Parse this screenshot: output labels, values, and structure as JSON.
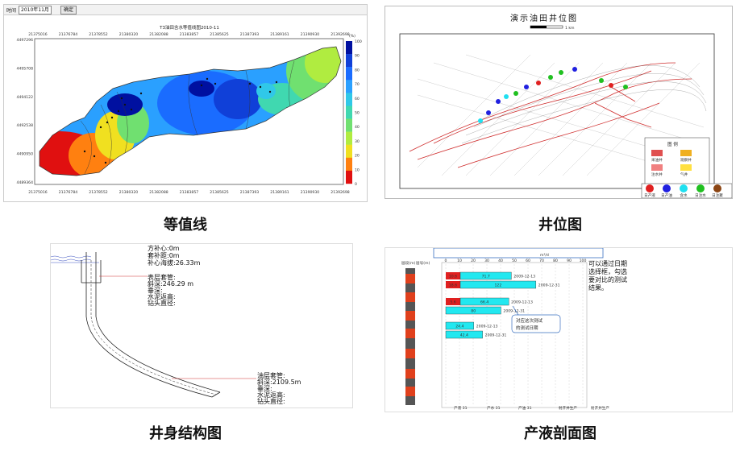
{
  "captions": {
    "contour": "等值线",
    "wellmap": "井位图",
    "wellbore": "井身结构图",
    "profile": "产液剖面图"
  },
  "contour": {
    "toolbar": {
      "date_label": "时间",
      "date_value": "2010年11月",
      "confirm": "确定"
    },
    "title": "T3油田含水等值线图2010-11",
    "x_ticks": [
      "21375016",
      "21376784",
      "21378552",
      "21380320",
      "21382088",
      "21383857",
      "21385625",
      "21387393",
      "21389161",
      "21390930",
      "21392698"
    ],
    "y_ticks": [
      "4497296",
      "4495708",
      "4494122",
      "4492538",
      "4490950",
      "4489364"
    ],
    "legend_unit": "(%)",
    "legend_values": [
      "100",
      "90",
      "80",
      "70",
      "60",
      "50",
      "40",
      "30",
      "20",
      "10",
      "0"
    ],
    "legend_colors": [
      "#0010a0",
      "#1040d8",
      "#1a6cff",
      "#2aa0ff",
      "#30c8e8",
      "#40d8b0",
      "#70e070",
      "#b0ec40",
      "#f0e020",
      "#ff8010",
      "#e01010"
    ]
  },
  "wellmap": {
    "title": "演示油田井位图",
    "scale": "1 km",
    "legend_title": "图 例",
    "legend_rows": [
      [
        {
          "color": "#e05050",
          "label": "采油井"
        },
        {
          "color": "#f0b020",
          "label": "观察井"
        }
      ],
      [
        {
          "color": "#f08080",
          "label": "注水井"
        },
        {
          "color": "#ffe040",
          "label": "气井"
        }
      ]
    ],
    "circle_legend": [
      {
        "color": "#e02020",
        "label": "日产液"
      },
      {
        "color": "#2020e0",
        "label": "日产油"
      },
      {
        "color": "#20e0f0",
        "label": "含水"
      },
      {
        "color": "#20c020",
        "label": "日注水"
      },
      {
        "color": "#8b4513",
        "label": "日注聚"
      }
    ]
  },
  "wellbore": {
    "lines": [
      "方补心:0m",
      "套补距:0m",
      "补心海拔:26.33m"
    ],
    "surface": [
      "表层套管:",
      "斜深:246.29 m",
      "垂深:",
      "水泥返高:",
      "钻头直径:"
    ],
    "production": [
      "油层套管:",
      "斜深:2109.5m",
      "垂深:",
      "水泥返高:",
      "钻头直径:"
    ]
  },
  "profile": {
    "col_headers": [
      "层段(m)",
      "层号(m)"
    ],
    "axis_ticks": [
      "0",
      "10",
      "20",
      "30",
      "40",
      "50",
      "60",
      "70",
      "80",
      "90",
      "100"
    ],
    "axis_unit": "m³/d",
    "groups": [
      {
        "bars": [
          {
            "red": "10.6",
            "cyan": "71.7",
            "date": "2009-12-13"
          },
          {
            "red": "18.6",
            "cyan": "122",
            "date": "2009-12-31"
          }
        ]
      },
      {
        "bars": [
          {
            "red": "5.6",
            "cyan": "66.4",
            "date": "2009-12-13"
          },
          {
            "red": "",
            "cyan": "80",
            "date": "2009-12-31"
          }
        ]
      },
      {
        "bars": [
          {
            "red": "",
            "cyan": "24.4",
            "date": "2009-12-13"
          },
          {
            "red": "",
            "cyan": "42.4",
            "date": "2009-12-31"
          }
        ]
      }
    ],
    "note_right": [
      "可以通过日期",
      "选择框，勾选",
      "要对比的测试",
      "结果。"
    ],
    "note_callout": [
      "对应这次测试",
      "的测试日期"
    ],
    "bottom_legend": [
      "产液 31",
      "产水 31",
      "产油 31",
      "射开井生产",
      "射开井生产"
    ]
  }
}
